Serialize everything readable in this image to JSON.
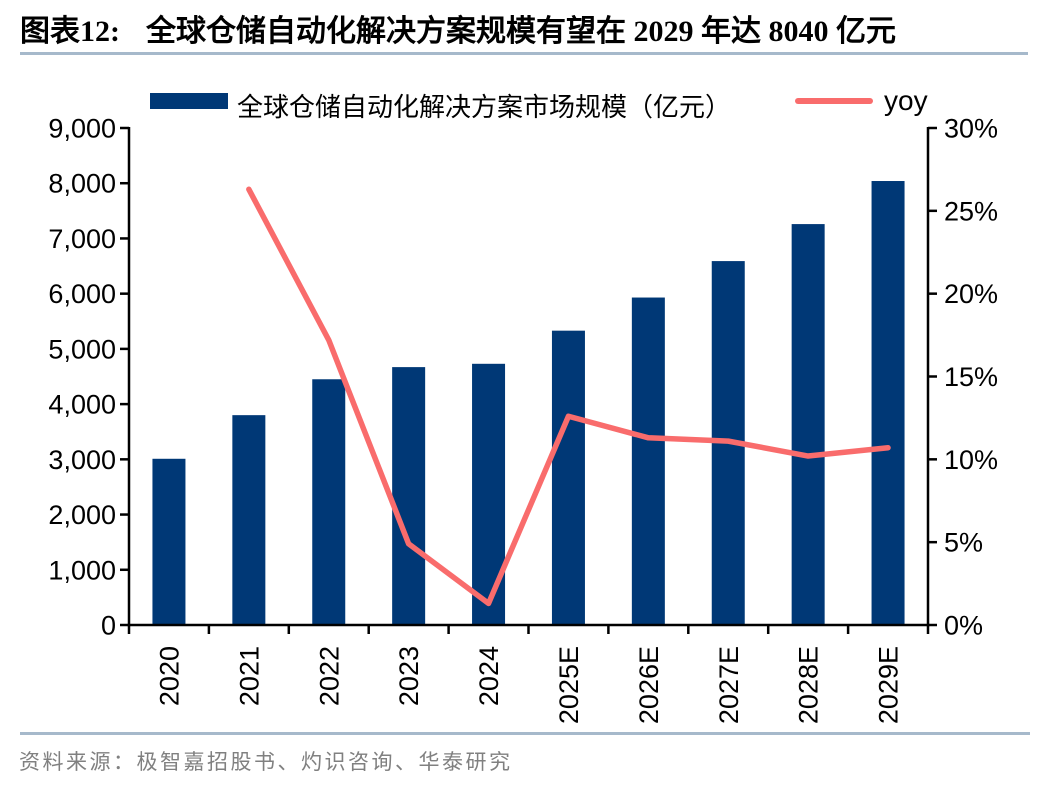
{
  "title": {
    "figure_label": "图表12:",
    "text": "全球仓储自动化解决方案规模有望在 2029 年达 8040 亿元"
  },
  "legend": {
    "bar_label": "全球仓储自动化解决方案市场规模（亿元）",
    "line_label": "yoy"
  },
  "source": "资料来源：极智嘉招股书、灼识咨询、华泰研究",
  "colors": {
    "bar": "#003876",
    "line": "#F96C6C",
    "rule": "#A6B9CB",
    "axis": "#000000",
    "source_text": "#808080"
  },
  "chart_data": {
    "type": "bar",
    "combo": "bar+line",
    "title": "全球仓储自动化解决方案规模有望在 2029 年达 8040 亿元",
    "categories": [
      "2020",
      "2021",
      "2022",
      "2023",
      "2024",
      "2025E",
      "2026E",
      "2027E",
      "2028E",
      "2029E"
    ],
    "series": [
      {
        "name": "全球仓储自动化解决方案市场规模（亿元）",
        "type": "bar",
        "axis": "left",
        "values": [
          3010,
          3800,
          4450,
          4670,
          4730,
          5330,
          5930,
          6590,
          7260,
          8040
        ]
      },
      {
        "name": "yoy",
        "type": "line",
        "axis": "right",
        "values": [
          null,
          26.3,
          17.2,
          4.9,
          1.3,
          12.6,
          11.3,
          11.1,
          10.2,
          10.7
        ]
      }
    ],
    "left_axis": {
      "min": 0,
      "max": 9000,
      "tick_labels": [
        "0",
        "1,000",
        "2,000",
        "3,000",
        "4,000",
        "5,000",
        "6,000",
        "7,000",
        "8,000",
        "9,000"
      ]
    },
    "right_axis": {
      "min": 0,
      "max": 30,
      "unit": "%",
      "tick_labels": [
        "0%",
        "5%",
        "10%",
        "15%",
        "20%",
        "25%",
        "30%"
      ]
    },
    "grid": false,
    "legend_position": "top"
  }
}
